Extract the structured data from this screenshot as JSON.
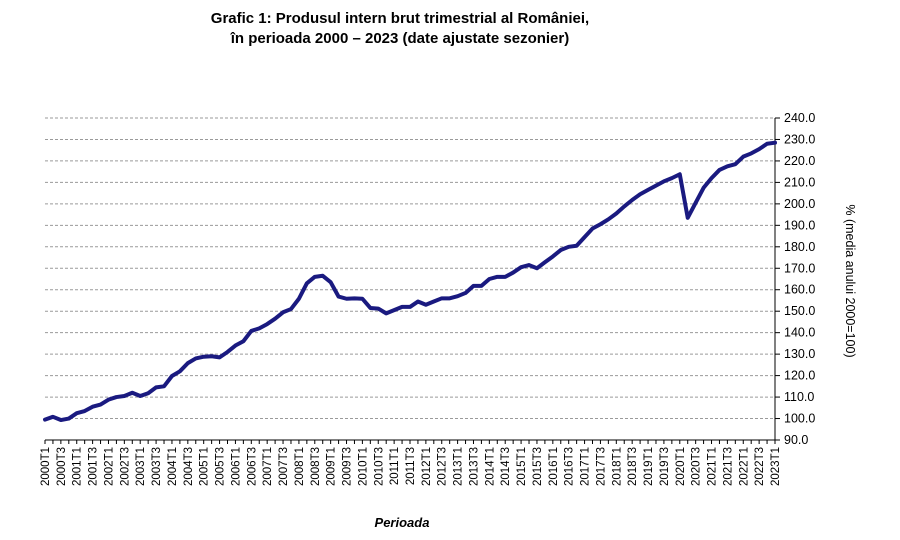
{
  "chart_data": {
    "type": "line",
    "title_line1": "Grafic 1: Produsul intern brut trimestrial al României,",
    "title_line2": "în perioada 2000 – 2023 (date ajustate sezonier)",
    "xlabel": "Perioada",
    "ylabel": "% (media anului 2000=100)",
    "ylim": [
      90,
      240
    ],
    "yticks": [
      "90.0",
      "100.0",
      "110.0",
      "120.0",
      "130.0",
      "140.0",
      "150.0",
      "160.0",
      "170.0",
      "180.0",
      "190.0",
      "200.0",
      "210.0",
      "220.0",
      "230.0",
      "240.0"
    ],
    "grid": true,
    "line_color": "#1a1a80",
    "x": [
      "2000T1",
      "2000T2",
      "2000T3",
      "2000T4",
      "2001T1",
      "2001T2",
      "2001T3",
      "2001T4",
      "2002T1",
      "2002T2",
      "2002T3",
      "2002T4",
      "2003T1",
      "2003T2",
      "2003T3",
      "2003T4",
      "2004T1",
      "2004T2",
      "2004T3",
      "2004T4",
      "2005T1",
      "2005T2",
      "2005T3",
      "2005T4",
      "2006T1",
      "2006T2",
      "2006T3",
      "2006T4",
      "2007T1",
      "2007T2",
      "2007T3",
      "2007T4",
      "2008T1",
      "2008T2",
      "2008T3",
      "2008T4",
      "2009T1",
      "2009T2",
      "2009T3",
      "2009T4",
      "2010T1",
      "2010T2",
      "2010T3",
      "2010T4",
      "2011T1",
      "2011T2",
      "2011T3",
      "2011T4",
      "2012T1",
      "2012T2",
      "2012T3",
      "2012T4",
      "2013T1",
      "2013T2",
      "2013T3",
      "2013T4",
      "2014T1",
      "2014T2",
      "2014T3",
      "2014T4",
      "2015T1",
      "2015T2",
      "2015T3",
      "2015T4",
      "2016T1",
      "2016T2",
      "2016T3",
      "2016T4",
      "2017T1",
      "2017T2",
      "2017T3",
      "2017T4",
      "2018T1",
      "2018T2",
      "2018T3",
      "2018T4",
      "2019T1",
      "2019T2",
      "2019T3",
      "2019T4",
      "2020T1",
      "2020T2",
      "2020T3",
      "2020T4",
      "2021T1",
      "2021T2",
      "2021T3",
      "2021T4",
      "2022T1",
      "2022T2",
      "2022T3",
      "2022T4",
      "2023T1"
    ],
    "x_tick_labels": [
      "2000T1",
      "2000T3",
      "2001T1",
      "2001T3",
      "2002T1",
      "2002T3",
      "2003T1",
      "2003T3",
      "2004T1",
      "2004T3",
      "2005T1",
      "2005T3",
      "2006T1",
      "2006T3",
      "2007T1",
      "2007T3",
      "2008T1",
      "2008T3",
      "2009T1",
      "2009T3",
      "2010T1",
      "2010T3",
      "2011T1",
      "2011T3",
      "2012T1",
      "2012T3",
      "2013T1",
      "2013T3",
      "2014T1",
      "2014T3",
      "2015T1",
      "2015T3",
      "2016T1",
      "2016T3",
      "2017T1",
      "2017T3",
      "2018T1",
      "2018T3",
      "2019T1",
      "2019T3",
      "2020T1",
      "2020T3",
      "2021T1",
      "2021T3",
      "2022T1",
      "2022T3",
      "2023T1"
    ],
    "series": [
      {
        "name": "PIB trimestrial",
        "values": [
          99.5,
          100.8,
          99.3,
          100.0,
          102.5,
          103.5,
          105.5,
          106.5,
          108.8,
          110.0,
          110.5,
          112.0,
          110.5,
          111.8,
          114.5,
          115.0,
          119.8,
          122.0,
          125.8,
          128.0,
          128.8,
          129.0,
          128.5,
          131.0,
          134.0,
          136.0,
          140.8,
          142.0,
          144.0,
          146.5,
          149.5,
          151.0,
          155.8,
          163.0,
          166.0,
          166.5,
          163.5,
          156.8,
          155.8,
          156.0,
          155.8,
          151.5,
          151.2,
          149.0,
          150.5,
          152.0,
          152.0,
          154.5,
          153.0,
          154.5,
          156.0,
          156.0,
          157.0,
          158.5,
          161.8,
          161.8,
          165.0,
          166.0,
          166.0,
          168.0,
          170.5,
          171.5,
          170.0,
          172.8,
          175.5,
          178.5,
          180.0,
          180.5,
          184.5,
          188.5,
          190.5,
          192.8,
          195.5,
          198.8,
          201.8,
          204.5,
          206.5,
          208.5,
          210.5,
          212.0,
          213.8,
          193.5,
          200.5,
          207.5,
          212.0,
          215.8,
          217.5,
          218.5,
          222.0,
          223.5,
          225.5,
          228.0,
          228.5
        ]
      }
    ]
  }
}
